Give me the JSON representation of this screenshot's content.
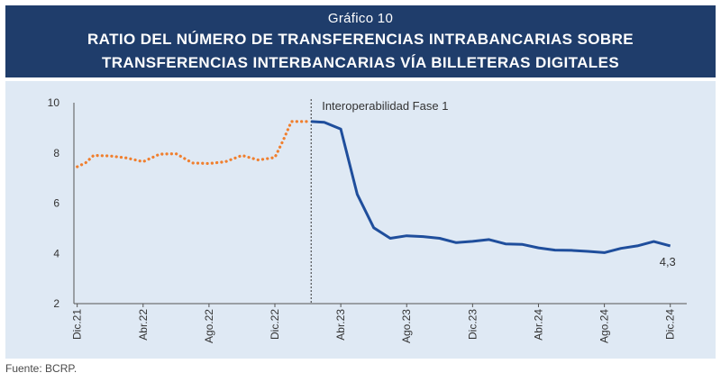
{
  "header": {
    "graphic_number": "Gráfico 10",
    "title_line1": "RATIO DEL NÚMERO DE TRANSFERENCIAS INTRABANCARIAS SOBRE",
    "title_line2": "TRANSFERENCIAS INTERBANCARIAS VÍA BILLETERAS DIGITALES"
  },
  "footer": {
    "source": "Fuente: BCRP."
  },
  "colors": {
    "header_bg": "#1f3d6b",
    "panel_bg": "#dfe9f4",
    "before_series": "#f07f2e",
    "after_series": "#1f4e9c"
  },
  "chart_data": {
    "type": "line",
    "title": "RATIO DEL NÚMERO DE TRANSFERENCIAS INTRABANCARIAS SOBRE TRANSFERENCIAS INTERBANCARIAS VÍA BILLETERAS DIGITALES",
    "ylim": [
      2,
      10
    ],
    "y_ticks": [
      "2",
      "4",
      "6",
      "8",
      "10"
    ],
    "x_ticks": [
      {
        "label": "Dic.21",
        "x": 0
      },
      {
        "label": "Abr.22",
        "x": 4
      },
      {
        "label": "Ago.22",
        "x": 8
      },
      {
        "label": "Dic.22",
        "x": 12
      },
      {
        "label": "Abr.23",
        "x": 16
      },
      {
        "label": "Ago.23",
        "x": 20
      },
      {
        "label": "Dic.23",
        "x": 24
      },
      {
        "label": "Abr.24",
        "x": 28
      },
      {
        "label": "Ago.24",
        "x": 32
      },
      {
        "label": "Dic.24",
        "x": 36
      }
    ],
    "x_range": [
      -0.2,
      37
    ],
    "annotation": {
      "text": "Interoperabilidad Fase 1",
      "x": 14.2
    },
    "end_label": "4,3",
    "series": [
      {
        "style": "dotted",
        "color": "#f07f2e",
        "points": [
          [
            0,
            7.45
          ],
          [
            0.5,
            7.6
          ],
          [
            1,
            7.9
          ],
          [
            2,
            7.88
          ],
          [
            3,
            7.8
          ],
          [
            4,
            7.65
          ],
          [
            5,
            7.95
          ],
          [
            6,
            7.97
          ],
          [
            7,
            7.6
          ],
          [
            8,
            7.58
          ],
          [
            9,
            7.65
          ],
          [
            10,
            7.9
          ],
          [
            11,
            7.72
          ],
          [
            12,
            7.82
          ],
          [
            12.5,
            8.5
          ],
          [
            13,
            9.25
          ],
          [
            14,
            9.25
          ],
          [
            14.2,
            9.25
          ]
        ]
      },
      {
        "style": "solid",
        "color": "#1f4e9c",
        "points": [
          [
            14.2,
            9.25
          ],
          [
            15,
            9.22
          ],
          [
            16,
            8.95
          ],
          [
            17,
            6.35
          ],
          [
            18,
            5.02
          ],
          [
            19,
            4.6
          ],
          [
            20,
            4.7
          ],
          [
            21,
            4.67
          ],
          [
            22,
            4.6
          ],
          [
            23,
            4.43
          ],
          [
            24,
            4.48
          ],
          [
            25,
            4.55
          ],
          [
            26,
            4.38
          ],
          [
            27,
            4.36
          ],
          [
            28,
            4.22
          ],
          [
            29,
            4.13
          ],
          [
            30,
            4.12
          ],
          [
            31,
            4.08
          ],
          [
            32,
            4.03
          ],
          [
            33,
            4.2
          ],
          [
            34,
            4.3
          ],
          [
            35,
            4.47
          ],
          [
            36,
            4.3
          ]
        ]
      }
    ]
  }
}
